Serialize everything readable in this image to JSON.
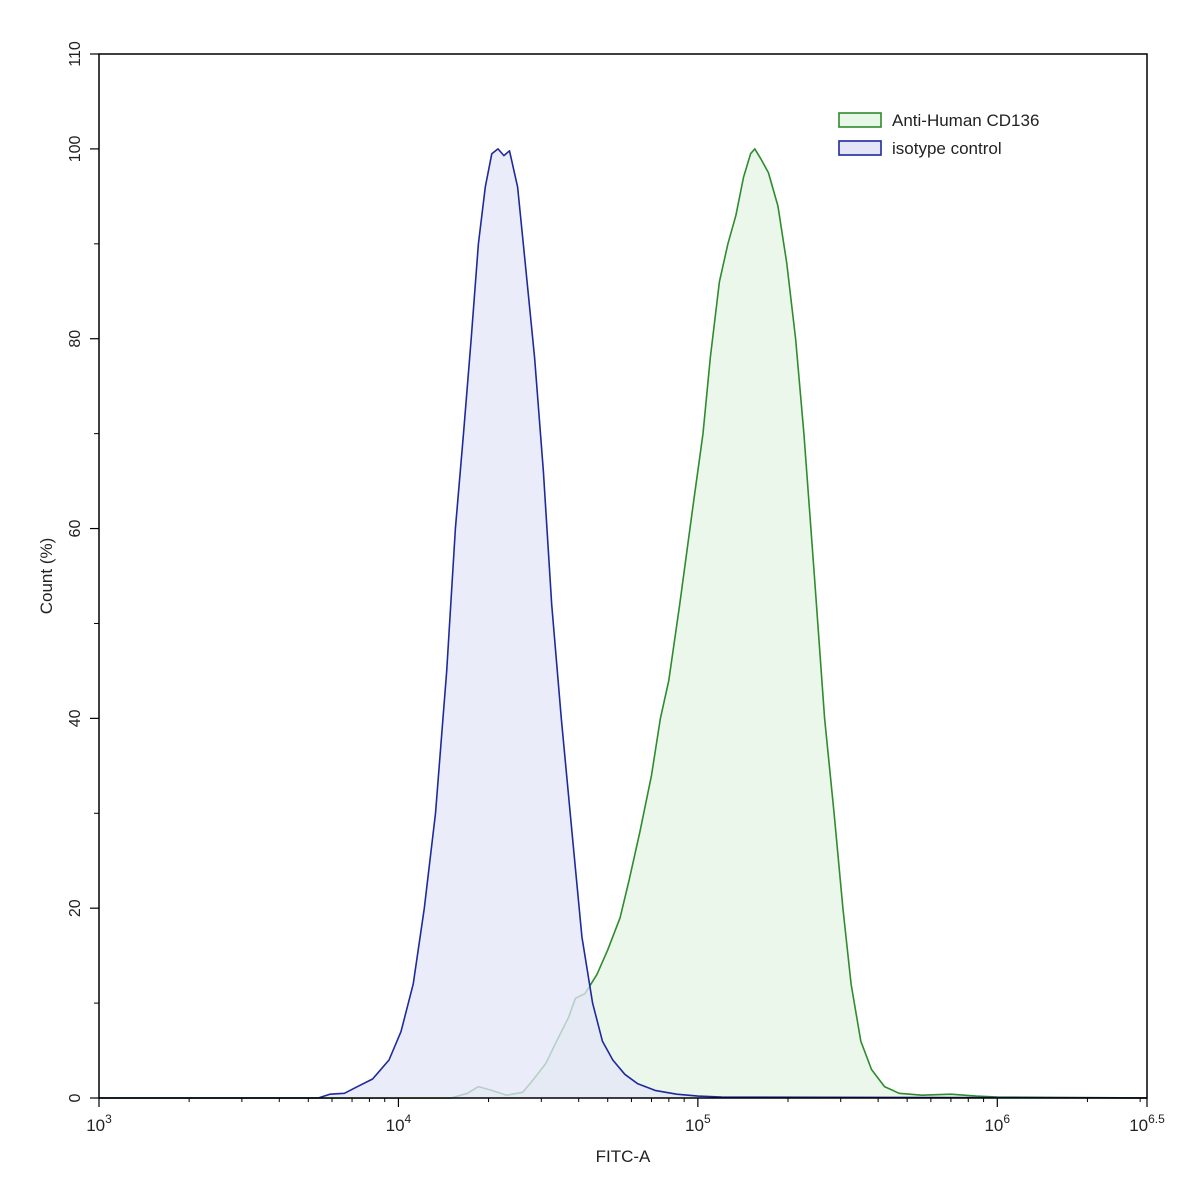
{
  "chart_data": {
    "type": "area",
    "title": "",
    "xlabel": "FITC-A",
    "ylabel": "Count  (%)",
    "x_scale": "log",
    "xlim": [
      1000,
      3162278
    ],
    "ylim": [
      0,
      110
    ],
    "grid": false,
    "legend_position": "top-right",
    "x_ticks": [
      {
        "base": "10",
        "exp": "3",
        "value": 1000
      },
      {
        "base": "10",
        "exp": "4",
        "value": 10000
      },
      {
        "base": "10",
        "exp": "5",
        "value": 100000
      },
      {
        "base": "10",
        "exp": "6",
        "value": 1000000
      },
      {
        "base": "10",
        "exp": "6.5",
        "value": 3162278
      }
    ],
    "y_ticks": [
      "0",
      "20",
      "40",
      "60",
      "80",
      "100",
      "110"
    ],
    "y_tick_values": [
      0,
      20,
      40,
      60,
      80,
      100,
      110
    ],
    "series": [
      {
        "name": "Anti-Human CD136",
        "stroke": "#2e8b2e",
        "fill": "#e8f6e8",
        "points": [
          [
            1000,
            0
          ],
          [
            15000,
            0
          ],
          [
            17000,
            0.5
          ],
          [
            18500,
            1.2
          ],
          [
            20500,
            0.8
          ],
          [
            23000,
            0.3
          ],
          [
            26000,
            0.6
          ],
          [
            28000,
            1.8
          ],
          [
            31000,
            3.6
          ],
          [
            34000,
            6.2
          ],
          [
            37000,
            8.5
          ],
          [
            39000,
            10.5
          ],
          [
            42000,
            11
          ],
          [
            46000,
            13
          ],
          [
            50000,
            15.6
          ],
          [
            55000,
            19
          ],
          [
            59000,
            23
          ],
          [
            64000,
            28
          ],
          [
            70000,
            34
          ],
          [
            75000,
            40
          ],
          [
            80000,
            44
          ],
          [
            87000,
            52
          ],
          [
            96000,
            62
          ],
          [
            104000,
            70
          ],
          [
            110000,
            78
          ],
          [
            118000,
            86
          ],
          [
            126000,
            90
          ],
          [
            134000,
            93
          ],
          [
            142000,
            97
          ],
          [
            150000,
            99.5
          ],
          [
            155000,
            100
          ],
          [
            162000,
            99
          ],
          [
            172000,
            97.5
          ],
          [
            185000,
            94
          ],
          [
            198000,
            88
          ],
          [
            212000,
            80
          ],
          [
            226000,
            70
          ],
          [
            245000,
            55
          ],
          [
            265000,
            40
          ],
          [
            285000,
            30
          ],
          [
            305000,
            20
          ],
          [
            325000,
            12
          ],
          [
            350000,
            6
          ],
          [
            380000,
            3
          ],
          [
            420000,
            1.2
          ],
          [
            470000,
            0.5
          ],
          [
            560000,
            0.3
          ],
          [
            700000,
            0.4
          ],
          [
            850000,
            0.2
          ],
          [
            1000000,
            0.1
          ],
          [
            3162278,
            0
          ]
        ]
      },
      {
        "name": "isotype control",
        "stroke": "#1e2a9c",
        "fill": "#e4e6f8",
        "points": [
          [
            1000,
            0
          ],
          [
            5400,
            0
          ],
          [
            5900,
            0.4
          ],
          [
            6600,
            0.5
          ],
          [
            7300,
            1.2
          ],
          [
            8200,
            2
          ],
          [
            9300,
            4
          ],
          [
            10200,
            7
          ],
          [
            11200,
            12
          ],
          [
            12200,
            20
          ],
          [
            13300,
            30
          ],
          [
            14500,
            45
          ],
          [
            15500,
            60
          ],
          [
            16500,
            70
          ],
          [
            17500,
            80
          ],
          [
            18500,
            90
          ],
          [
            19500,
            96
          ],
          [
            20500,
            99.5
          ],
          [
            21500,
            100
          ],
          [
            22500,
            99.3
          ],
          [
            23500,
            99.8
          ],
          [
            25000,
            96
          ],
          [
            26500,
            88
          ],
          [
            28500,
            78
          ],
          [
            30500,
            66
          ],
          [
            32500,
            52
          ],
          [
            35000,
            40
          ],
          [
            38000,
            28
          ],
          [
            41000,
            17
          ],
          [
            44500,
            10
          ],
          [
            48000,
            6
          ],
          [
            52000,
            4
          ],
          [
            57000,
            2.5
          ],
          [
            63000,
            1.5
          ],
          [
            72000,
            0.8
          ],
          [
            85000,
            0.4
          ],
          [
            100000,
            0.2
          ],
          [
            120000,
            0.1
          ],
          [
            3162278,
            0
          ]
        ]
      }
    ]
  }
}
